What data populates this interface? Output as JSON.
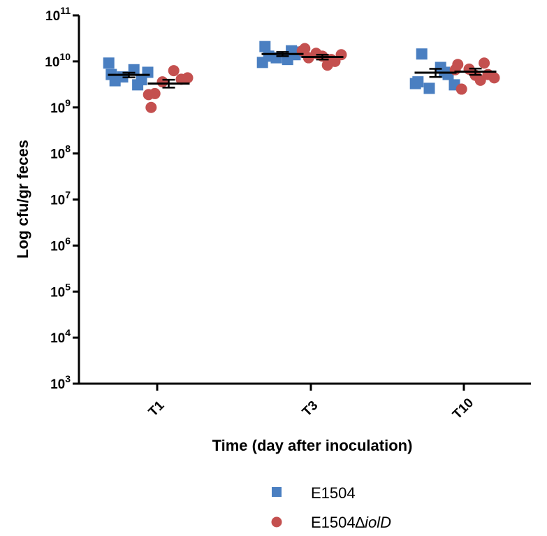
{
  "chart_data": {
    "type": "scatter",
    "title": "",
    "xlabel": "Time (day after inoculation)",
    "ylabel": "Log cfu/gr feces",
    "yscale": "log10",
    "ylim": [
      1000,
      100000000000
    ],
    "y_tick_exponents": [
      3,
      4,
      5,
      6,
      7,
      8,
      9,
      10,
      11
    ],
    "y_tick_base": "10",
    "categories": [
      "T1",
      "T3",
      "T10"
    ],
    "grid": false,
    "legend_position": "bottom-center",
    "series": [
      {
        "name": "E1504",
        "marker": "square",
        "color": "#4a7fc1",
        "values": [
          [
            5200000000.0,
            4000000000.0,
            4600000000.0,
            5800000000.0,
            3800000000.0,
            6600000000.0,
            9200000000.0,
            3100000000.0
          ],
          [
            21000000000.0,
            14000000000.0,
            12000000000.0,
            16000000000.0,
            13000000000.0,
            11000000000.0,
            9500000000.0,
            17000000000.0
          ],
          [
            3600000000.0,
            5200000000.0,
            2600000000.0,
            3100000000.0,
            14500000000.0,
            7400000000.0,
            3300000000.0,
            5800000000.0
          ]
        ],
        "mean": [
          5100000000.0,
          14500000000.0,
          5700000000.0
        ],
        "sem_low": [
          4500000000.0,
          13000000000.0,
          4600000000.0
        ],
        "sem_high": [
          5700000000.0,
          16000000000.0,
          6900000000.0
        ]
      },
      {
        "name_prefix": "E1504∆",
        "name_italic": "iolD",
        "marker": "circle",
        "color": "#c4504f",
        "values": [
          [
            1000000000.0,
            4100000000.0,
            3600000000.0,
            4400000000.0,
            2000000000.0,
            6300000000.0,
            1900000000.0
          ],
          [
            19000000000.0,
            10000000000.0,
            15000000000.0,
            14000000000.0,
            12000000000.0,
            8300000000.0,
            17000000000.0,
            11000000000.0,
            13000000000.0
          ],
          [
            8600000000.0,
            5200000000.0,
            6800000000.0,
            4400000000.0,
            2500000000.0,
            3900000000.0,
            6600000000.0,
            9200000000.0,
            5000000000.0
          ]
        ],
        "mean": [
          3300000000.0,
          12500000000.0,
          6000000000.0
        ],
        "sem_low": [
          2700000000.0,
          11000000000.0,
          5100000000.0
        ],
        "sem_high": [
          4000000000.0,
          14000000000.0,
          7000000000.0
        ]
      }
    ]
  }
}
